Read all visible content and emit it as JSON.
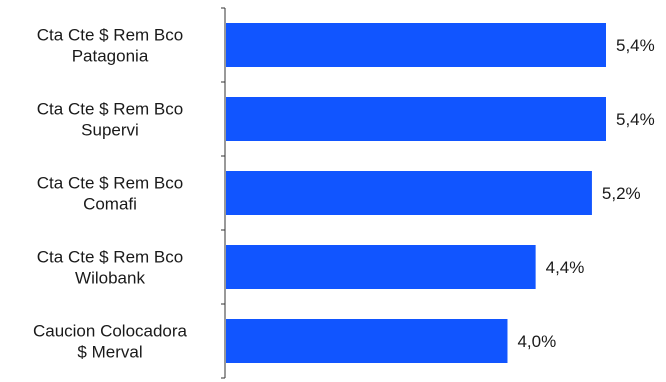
{
  "chart_data": {
    "type": "bar",
    "orientation": "horizontal",
    "categories": [
      [
        "Cta Cte $ Rem Bco",
        "Patagonia"
      ],
      [
        "Cta Cte $ Rem Bco",
        "Supervi"
      ],
      [
        "Cta Cte $ Rem Bco",
        "Comafi"
      ],
      [
        "Cta Cte $ Rem Bco",
        "Wilobank"
      ],
      [
        "Caucion Colocadora",
        "$ Merval"
      ]
    ],
    "values": [
      5.4,
      5.4,
      5.2,
      4.4,
      4.0
    ],
    "value_labels": [
      "5,4%",
      "5,4%",
      "5,2%",
      "4,4%",
      "4,0%"
    ],
    "bar_color": "#1155ff",
    "xlim": [
      0,
      5.4
    ],
    "grid": false,
    "legend": "none",
    "title": "",
    "xlabel": "",
    "ylabel": ""
  }
}
